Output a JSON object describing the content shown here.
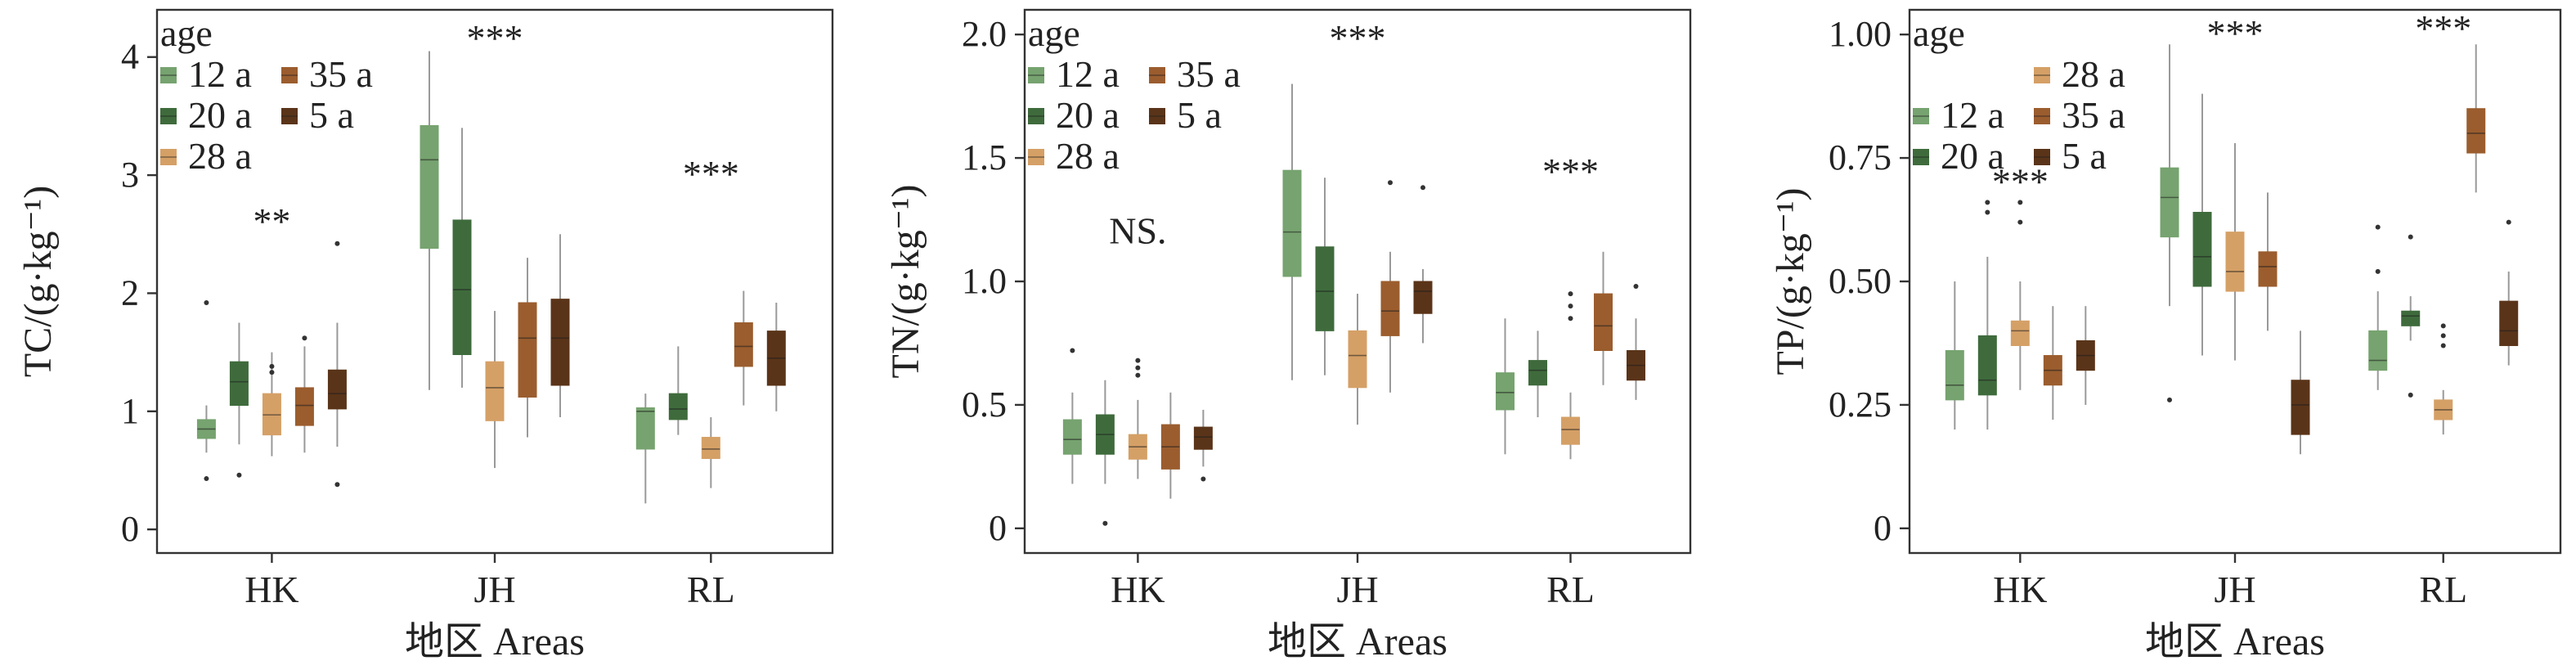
{
  "chart_data": [
    {
      "type": "boxplot",
      "ylabel": "TC/(g·kg⁻¹)",
      "xlabel": "地区 Areas",
      "ylim": [
        -0.2,
        4.4
      ],
      "yticks": [
        0,
        1,
        2,
        3,
        4
      ],
      "ytick_labels": [
        "0",
        "1",
        "2",
        "3",
        "4"
      ],
      "categories": [
        "HK",
        "JH",
        "RL"
      ],
      "legend": {
        "title": "age",
        "placement": "top-left",
        "entries": [
          {
            "label": "12 a",
            "series": "12 a"
          },
          {
            "label": "35 a",
            "series": "35 a"
          },
          {
            "label": "20 a",
            "series": "20 a"
          },
          {
            "label": "5 a",
            "series": "5 a"
          },
          {
            "label": "28 a",
            "series": "28 a"
          }
        ]
      },
      "significance": [
        {
          "category": "HK",
          "label": "**",
          "y": 2.6
        },
        {
          "category": "JH",
          "label": "***",
          "y": 4.15
        },
        {
          "category": "RL",
          "label": "***",
          "y": 3.0
        }
      ],
      "series": [
        {
          "name": "12 a",
          "boxes": [
            {
              "category": "HK",
              "whislo": 0.65,
              "q1": 0.77,
              "med": 0.85,
              "q3": 0.93,
              "whishi": 1.05,
              "fliers": [
                0.43,
                1.92
              ]
            },
            {
              "category": "JH",
              "whislo": 1.18,
              "q1": 2.38,
              "med": 3.13,
              "q3": 3.42,
              "whishi": 4.05,
              "fliers": []
            },
            {
              "category": "RL",
              "whislo": 0.22,
              "q1": 0.68,
              "med": 1.0,
              "q3": 1.03,
              "whishi": 1.15,
              "fliers": []
            }
          ]
        },
        {
          "name": "20 a",
          "boxes": [
            {
              "category": "HK",
              "whislo": 0.72,
              "q1": 1.05,
              "med": 1.25,
              "q3": 1.42,
              "whishi": 1.75,
              "fliers": [
                0.46
              ]
            },
            {
              "category": "JH",
              "whislo": 1.2,
              "q1": 1.48,
              "med": 2.03,
              "q3": 2.62,
              "whishi": 3.4,
              "fliers": []
            },
            {
              "category": "RL",
              "whislo": 0.8,
              "q1": 0.93,
              "med": 1.02,
              "q3": 1.15,
              "whishi": 1.55,
              "fliers": []
            }
          ]
        },
        {
          "name": "28 a",
          "boxes": [
            {
              "category": "HK",
              "whislo": 0.62,
              "q1": 0.8,
              "med": 0.97,
              "q3": 1.15,
              "whishi": 1.5,
              "fliers": [
                1.33,
                1.38
              ]
            },
            {
              "category": "JH",
              "whislo": 0.52,
              "q1": 0.92,
              "med": 1.2,
              "q3": 1.42,
              "whishi": 1.85,
              "fliers": []
            },
            {
              "category": "RL",
              "whislo": 0.35,
              "q1": 0.6,
              "med": 0.68,
              "q3": 0.78,
              "whishi": 0.95,
              "fliers": []
            }
          ]
        },
        {
          "name": "35 a",
          "boxes": [
            {
              "category": "HK",
              "whislo": 0.65,
              "q1": 0.88,
              "med": 1.05,
              "q3": 1.2,
              "whishi": 1.55,
              "fliers": [
                1.62
              ]
            },
            {
              "category": "JH",
              "whislo": 0.78,
              "q1": 1.12,
              "med": 1.62,
              "q3": 1.92,
              "whishi": 2.3,
              "fliers": []
            },
            {
              "category": "RL",
              "whislo": 1.05,
              "q1": 1.38,
              "med": 1.55,
              "q3": 1.75,
              "whishi": 2.02,
              "fliers": []
            }
          ]
        },
        {
          "name": "5 a",
          "boxes": [
            {
              "category": "HK",
              "whislo": 0.7,
              "q1": 1.02,
              "med": 1.15,
              "q3": 1.35,
              "whishi": 1.75,
              "fliers": [
                0.38,
                2.42
              ]
            },
            {
              "category": "JH",
              "whislo": 0.95,
              "q1": 1.22,
              "med": 1.62,
              "q3": 1.95,
              "whishi": 2.5,
              "fliers": []
            },
            {
              "category": "RL",
              "whislo": 1.0,
              "q1": 1.22,
              "med": 1.45,
              "q3": 1.68,
              "whishi": 1.92,
              "fliers": []
            }
          ]
        }
      ]
    },
    {
      "type": "boxplot",
      "ylabel": "TN/(g·kg⁻¹)",
      "xlabel": "地区 Areas",
      "ylim": [
        -0.1,
        2.1
      ],
      "yticks": [
        0,
        0.5,
        1.0,
        1.5,
        2.0
      ],
      "ytick_labels": [
        "0",
        "0.5",
        "1.0",
        "1.5",
        "2.0"
      ],
      "categories": [
        "HK",
        "JH",
        "RL"
      ],
      "legend": {
        "title": "age",
        "placement": "top-left",
        "entries": [
          {
            "label": "12 a",
            "series": "12 a"
          },
          {
            "label": "35 a",
            "series": "35 a"
          },
          {
            "label": "20 a",
            "series": "20 a"
          },
          {
            "label": "5 a",
            "series": "5 a"
          },
          {
            "label": "28 a",
            "series": "28 a"
          }
        ]
      },
      "significance": [
        {
          "category": "HK",
          "label": "NS.",
          "y": 1.2
        },
        {
          "category": "JH",
          "label": "***",
          "y": 1.98
        },
        {
          "category": "RL",
          "label": "***",
          "y": 1.44
        }
      ],
      "series": [
        {
          "name": "12 a",
          "boxes": [
            {
              "category": "HK",
              "whislo": 0.18,
              "q1": 0.3,
              "med": 0.36,
              "q3": 0.44,
              "whishi": 0.55,
              "fliers": [
                0.72
              ]
            },
            {
              "category": "JH",
              "whislo": 0.6,
              "q1": 1.02,
              "med": 1.2,
              "q3": 1.45,
              "whishi": 1.8,
              "fliers": []
            },
            {
              "category": "RL",
              "whislo": 0.3,
              "q1": 0.48,
              "med": 0.55,
              "q3": 0.63,
              "whishi": 0.85,
              "fliers": []
            }
          ]
        },
        {
          "name": "20 a",
          "boxes": [
            {
              "category": "HK",
              "whislo": 0.18,
              "q1": 0.3,
              "med": 0.38,
              "q3": 0.46,
              "whishi": 0.6,
              "fliers": [
                0.02
              ]
            },
            {
              "category": "JH",
              "whislo": 0.62,
              "q1": 0.8,
              "med": 0.96,
              "q3": 1.14,
              "whishi": 1.42,
              "fliers": []
            },
            {
              "category": "RL",
              "whislo": 0.45,
              "q1": 0.58,
              "med": 0.64,
              "q3": 0.68,
              "whishi": 0.8,
              "fliers": []
            }
          ]
        },
        {
          "name": "28 a",
          "boxes": [
            {
              "category": "HK",
              "whislo": 0.2,
              "q1": 0.28,
              "med": 0.33,
              "q3": 0.38,
              "whishi": 0.52,
              "fliers": [
                0.62,
                0.65,
                0.68
              ]
            },
            {
              "category": "JH",
              "whislo": 0.42,
              "q1": 0.57,
              "med": 0.7,
              "q3": 0.8,
              "whishi": 0.95,
              "fliers": []
            },
            {
              "category": "RL",
              "whislo": 0.28,
              "q1": 0.34,
              "med": 0.4,
              "q3": 0.45,
              "whishi": 0.55,
              "fliers": [
                0.85,
                0.9,
                0.95
              ]
            }
          ]
        },
        {
          "name": "35 a",
          "boxes": [
            {
              "category": "HK",
              "whislo": 0.12,
              "q1": 0.24,
              "med": 0.33,
              "q3": 0.42,
              "whishi": 0.55,
              "fliers": []
            },
            {
              "category": "JH",
              "whislo": 0.55,
              "q1": 0.78,
              "med": 0.88,
              "q3": 1.0,
              "whishi": 1.12,
              "fliers": [
                1.4
              ]
            },
            {
              "category": "RL",
              "whislo": 0.58,
              "q1": 0.72,
              "med": 0.82,
              "q3": 0.95,
              "whishi": 1.12,
              "fliers": []
            }
          ]
        },
        {
          "name": "5 a",
          "boxes": [
            {
              "category": "HK",
              "whislo": 0.25,
              "q1": 0.32,
              "med": 0.37,
              "q3": 0.41,
              "whishi": 0.48,
              "fliers": [
                0.2
              ]
            },
            {
              "category": "JH",
              "whislo": 0.75,
              "q1": 0.87,
              "med": 0.96,
              "q3": 1.0,
              "whishi": 1.05,
              "fliers": [
                1.38
              ]
            },
            {
              "category": "RL",
              "whislo": 0.52,
              "q1": 0.6,
              "med": 0.66,
              "q3": 0.72,
              "whishi": 0.85,
              "fliers": [
                0.98
              ]
            }
          ]
        }
      ]
    },
    {
      "type": "boxplot",
      "ylabel": "TP/(g·kg⁻¹)",
      "xlabel": "地区 Areas",
      "ylim": [
        -0.05,
        1.05
      ],
      "yticks": [
        0,
        0.25,
        0.5,
        0.75,
        1.0
      ],
      "ytick_labels": [
        "0",
        "0.25",
        "0.50",
        "0.75",
        "1.00"
      ],
      "categories": [
        "HK",
        "JH",
        "RL"
      ],
      "legend": {
        "title": "age",
        "placement": "top-left",
        "entries": [
          {
            "label": "28 a",
            "series": "28 a"
          },
          {
            "label": "12 a",
            "series": "12 a"
          },
          {
            "label": "35 a",
            "series": "35 a"
          },
          {
            "label": "20 a",
            "series": "20 a"
          },
          {
            "label": "5 a",
            "series": "5 a"
          }
        ]
      },
      "significance": [
        {
          "category": "HK",
          "label": "***",
          "y": 0.7
        },
        {
          "category": "JH",
          "label": "***",
          "y": 1.0
        },
        {
          "category": "RL",
          "label": "***",
          "y": 1.01
        }
      ],
      "series": [
        {
          "name": "12 a",
          "boxes": [
            {
              "category": "HK",
              "whislo": 0.2,
              "q1": 0.26,
              "med": 0.29,
              "q3": 0.36,
              "whishi": 0.5,
              "fliers": []
            },
            {
              "category": "JH",
              "whislo": 0.45,
              "q1": 0.59,
              "med": 0.67,
              "q3": 0.73,
              "whishi": 0.98,
              "fliers": [
                0.26
              ]
            },
            {
              "category": "RL",
              "whislo": 0.28,
              "q1": 0.32,
              "med": 0.34,
              "q3": 0.4,
              "whishi": 0.48,
              "fliers": [
                0.52,
                0.61
              ]
            }
          ]
        },
        {
          "name": "20 a",
          "boxes": [
            {
              "category": "HK",
              "whislo": 0.2,
              "q1": 0.27,
              "med": 0.3,
              "q3": 0.39,
              "whishi": 0.55,
              "fliers": [
                0.64,
                0.66
              ]
            },
            {
              "category": "JH",
              "whislo": 0.35,
              "q1": 0.49,
              "med": 0.55,
              "q3": 0.64,
              "whishi": 0.88,
              "fliers": []
            },
            {
              "category": "RL",
              "whislo": 0.38,
              "q1": 0.41,
              "med": 0.43,
              "q3": 0.44,
              "whishi": 0.47,
              "fliers": [
                0.27,
                0.59
              ]
            }
          ]
        },
        {
          "name": "28 a",
          "boxes": [
            {
              "category": "HK",
              "whislo": 0.28,
              "q1": 0.37,
              "med": 0.4,
              "q3": 0.42,
              "whishi": 0.5,
              "fliers": [
                0.62,
                0.66
              ]
            },
            {
              "category": "JH",
              "whislo": 0.34,
              "q1": 0.48,
              "med": 0.52,
              "q3": 0.6,
              "whishi": 0.78,
              "fliers": []
            },
            {
              "category": "RL",
              "whislo": 0.19,
              "q1": 0.22,
              "med": 0.24,
              "q3": 0.26,
              "whishi": 0.28,
              "fliers": [
                0.37,
                0.39,
                0.41
              ]
            }
          ]
        },
        {
          "name": "35 a",
          "boxes": [
            {
              "category": "HK",
              "whislo": 0.22,
              "q1": 0.29,
              "med": 0.32,
              "q3": 0.35,
              "whishi": 0.45,
              "fliers": []
            },
            {
              "category": "JH",
              "whislo": 0.4,
              "q1": 0.49,
              "med": 0.53,
              "q3": 0.56,
              "whishi": 0.68,
              "fliers": []
            },
            {
              "category": "RL",
              "whislo": 0.68,
              "q1": 0.76,
              "med": 0.8,
              "q3": 0.85,
              "whishi": 0.98,
              "fliers": []
            }
          ]
        },
        {
          "name": "5 a",
          "boxes": [
            {
              "category": "HK",
              "whislo": 0.25,
              "q1": 0.32,
              "med": 0.35,
              "q3": 0.38,
              "whishi": 0.45,
              "fliers": []
            },
            {
              "category": "JH",
              "whislo": 0.15,
              "q1": 0.19,
              "med": 0.25,
              "q3": 0.3,
              "whishi": 0.4,
              "fliers": []
            },
            {
              "category": "RL",
              "whislo": 0.33,
              "q1": 0.37,
              "med": 0.4,
              "q3": 0.46,
              "whishi": 0.52,
              "fliers": [
                0.62
              ]
            }
          ]
        }
      ]
    }
  ],
  "colors": {
    "12 a": "#76a36f",
    "20 a": "#3f6b3c",
    "28 a": "#d5a066",
    "35 a": "#9b5d2e",
    "5 a": "#5a3419",
    "frame": "#333333",
    "whisker": "#999999"
  },
  "series_order": [
    "12 a",
    "20 a",
    "28 a",
    "35 a",
    "5 a"
  ]
}
